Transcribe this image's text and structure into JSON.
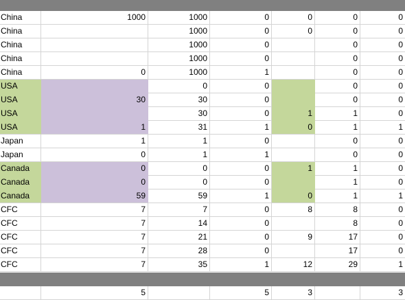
{
  "colors": {
    "header_band": "#808080",
    "green_fill": "#c4d79b",
    "purple_fill": "#ccc0da",
    "gridline": "#d4d4d4"
  },
  "rows": [
    {
      "cells": [
        "China",
        "1000",
        "1000",
        "0",
        "0",
        "0",
        "0"
      ],
      "fill": [
        "",
        "",
        "",
        "",
        "",
        "",
        ""
      ]
    },
    {
      "cells": [
        "China",
        "",
        "1000",
        "0",
        "0",
        "0",
        "0"
      ],
      "fill": [
        "",
        "",
        "",
        "",
        "",
        "",
        ""
      ]
    },
    {
      "cells": [
        "China",
        "",
        "1000",
        "0",
        "",
        "0",
        "0"
      ],
      "fill": [
        "",
        "",
        "",
        "",
        "",
        "",
        ""
      ]
    },
    {
      "cells": [
        "China",
        "",
        "1000",
        "0",
        "",
        "0",
        "0"
      ],
      "fill": [
        "",
        "",
        "",
        "",
        "",
        "",
        ""
      ]
    },
    {
      "cells": [
        "China",
        "0",
        "1000",
        "1",
        "",
        "0",
        "0"
      ],
      "fill": [
        "",
        "",
        "",
        "",
        "",
        "",
        ""
      ]
    },
    {
      "cells": [
        "USA",
        "",
        "0",
        "0",
        "",
        "0",
        "0"
      ],
      "fill": [
        "green",
        "purple",
        "",
        "",
        "green",
        "",
        ""
      ]
    },
    {
      "cells": [
        "USA",
        "30",
        "30",
        "0",
        "",
        "0",
        "0"
      ],
      "fill": [
        "green",
        "purple",
        "",
        "",
        "green",
        "",
        ""
      ]
    },
    {
      "cells": [
        "USA",
        "",
        "30",
        "0",
        "1",
        "1",
        "0"
      ],
      "fill": [
        "green",
        "purple",
        "",
        "",
        "green",
        "",
        ""
      ]
    },
    {
      "cells": [
        "USA",
        "1",
        "31",
        "1",
        "0",
        "1",
        "1"
      ],
      "fill": [
        "green",
        "purple",
        "",
        "",
        "green",
        "",
        ""
      ]
    },
    {
      "cells": [
        "Japan",
        "1",
        "1",
        "0",
        "",
        "0",
        "0"
      ],
      "fill": [
        "",
        "",
        "",
        "",
        "",
        "",
        ""
      ]
    },
    {
      "cells": [
        "Japan",
        "0",
        "1",
        "1",
        "",
        "0",
        "0"
      ],
      "fill": [
        "",
        "",
        "",
        "",
        "",
        "",
        ""
      ]
    },
    {
      "cells": [
        "Canada",
        "0",
        "0",
        "0",
        "1",
        "1",
        "0"
      ],
      "fill": [
        "green",
        "purple",
        "",
        "",
        "green",
        "",
        ""
      ]
    },
    {
      "cells": [
        "Canada",
        "0",
        "0",
        "0",
        "",
        "1",
        "0"
      ],
      "fill": [
        "green",
        "purple",
        "",
        "",
        "green",
        "",
        ""
      ]
    },
    {
      "cells": [
        "Canada",
        "59",
        "59",
        "1",
        "0",
        "1",
        "1"
      ],
      "fill": [
        "green",
        "purple",
        "",
        "",
        "green",
        "",
        ""
      ]
    },
    {
      "cells": [
        "CFC",
        "7",
        "7",
        "0",
        "8",
        "8",
        "0"
      ],
      "fill": [
        "",
        "",
        "",
        "",
        "",
        "",
        ""
      ]
    },
    {
      "cells": [
        "CFC",
        "7",
        "14",
        "0",
        "",
        "8",
        "0"
      ],
      "fill": [
        "",
        "",
        "",
        "",
        "",
        "",
        ""
      ]
    },
    {
      "cells": [
        "CFC",
        "7",
        "21",
        "0",
        "9",
        "17",
        "0"
      ],
      "fill": [
        "",
        "",
        "",
        "",
        "",
        "",
        ""
      ]
    },
    {
      "cells": [
        "CFC",
        "7",
        "28",
        "0",
        "",
        "17",
        "0"
      ],
      "fill": [
        "",
        "",
        "",
        "",
        "",
        "",
        ""
      ]
    },
    {
      "cells": [
        "CFC",
        "7",
        "35",
        "1",
        "12",
        "29",
        "1"
      ],
      "fill": [
        "",
        "",
        "",
        "",
        "",
        "",
        ""
      ]
    }
  ],
  "totals": {
    "cells": [
      "",
      "5",
      "",
      "5",
      "3",
      "",
      "3"
    ]
  }
}
